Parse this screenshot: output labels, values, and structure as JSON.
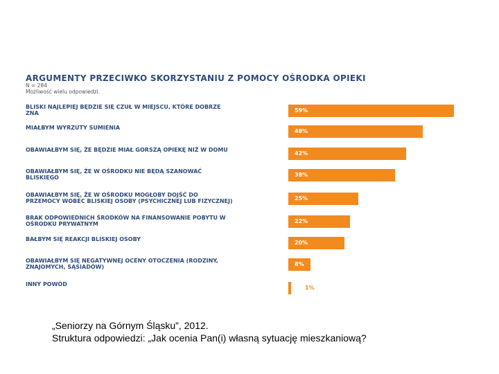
{
  "chart_data": {
    "type": "bar",
    "title": "ARGUMENTY PRZECIWKO SKORZYSTANIU Z POMOCY OŚRODKA OPIEKI",
    "subtitle": "N = 284",
    "note": "Możliwość wielu odpowiedzi.",
    "orientation": "horizontal",
    "color": "#f28a1e",
    "categories": [
      "BLISKI NAJLEPIEJ BĘDZIE SIĘ CZUŁ W MIEJSCU, KTÓRE DOBRZE ZNA",
      "MIAŁBYM WYRZUTY SUMIENIA",
      "OBAWIAŁBYM SIĘ, ŻE BĘDZIE MIAŁ GORSZĄ OPIEKĘ NIŻ W DOMU",
      "OBAWIAŁBYM SIĘ, ŻE W OŚRODKU NIE BĘDĄ SZANOWAĆ BLISKIEGO",
      "OBAWIAŁBYM SIĘ, ŻE W OŚRODKU MOGŁOBY DOJŚĆ DO PRZEMOCY WOBEC BLISKIEJ OSOBY (PSYCHICZNEJ LUB FIZYCZNEJ)",
      "BRAK ODPOWIEDNICH ŚRODKÓW NA FINANSOWANIE POBYTU W OŚRODKU PRYWATNYM",
      "BAŁBYM SIĘ REAKCJI BLISKIEJ OSOBY",
      "OBAWIAŁBYM SIĘ NEGATYWNEJ OCENY OTOCZENIA (RODZINY, ZNAJOMYCH, SĄSIADÓW)",
      "INNY POWÓD"
    ],
    "values": [
      59,
      48,
      42,
      38,
      25,
      22,
      20,
      8,
      1
    ],
    "value_labels": [
      "59%",
      "48%",
      "42%",
      "38%",
      "25%",
      "22%",
      "20%",
      "8%",
      "1%"
    ]
  },
  "caption": {
    "source": "„Seniorzy na Górnym Śląsku”, 2012.",
    "question": "Struktura odpowiedzi: „Jak ocenia Pan(i) własną sytuację mieszkaniową?"
  }
}
